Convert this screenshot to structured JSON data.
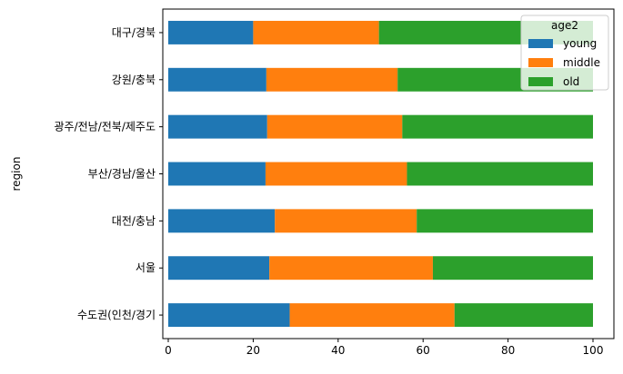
{
  "chart_data": {
    "type": "bar",
    "orientation": "horizontal",
    "stacked": true,
    "ylabel": "region",
    "xlabel": "",
    "xlim": [
      0,
      100
    ],
    "xticks": [
      0,
      20,
      40,
      60,
      80,
      100
    ],
    "categories": [
      "수도권(인천/경기",
      "서울",
      "대전/충남",
      "부산/경남/울산",
      "광주/전남/전북/제주도",
      "강원/충북",
      "대구/경북"
    ],
    "legend": {
      "title": "age2",
      "placement": "top-right"
    },
    "grid": false,
    "series": [
      {
        "name": "young",
        "color": "#1f77b4",
        "values": [
          28.6,
          23.8,
          25.1,
          22.9,
          23.3,
          23.1,
          20.0
        ]
      },
      {
        "name": "middle",
        "color": "#ff7f0e",
        "values": [
          38.8,
          38.5,
          33.4,
          33.3,
          31.8,
          30.9,
          29.6
        ]
      },
      {
        "name": "old",
        "color": "#2ca02c",
        "values": [
          32.6,
          37.7,
          41.5,
          43.8,
          44.9,
          46.0,
          50.4
        ]
      }
    ]
  }
}
